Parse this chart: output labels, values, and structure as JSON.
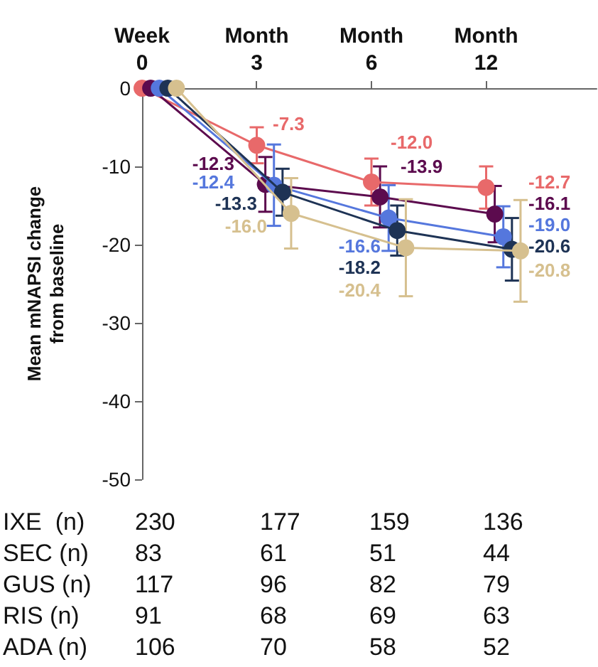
{
  "chart_data": {
    "type": "line",
    "categories": [
      "Week\n0",
      "Month\n3",
      "Month\n6",
      "Month\n12"
    ],
    "ylabel": "Mean mNAPSI change\nfrom baseline",
    "ylim": [
      -50,
      0
    ],
    "yticks": [
      -50,
      -40,
      -30,
      -20,
      -10,
      0
    ],
    "marker": "circle",
    "grid": false,
    "series": [
      {
        "color": "#e8696a",
        "values": [
          0,
          -7.3,
          -12.0,
          -12.7
        ],
        "errors": [
          null,
          2.3,
          3.0,
          2.7
        ],
        "value_labels": [
          null,
          "-7.3",
          "-12.0",
          "-12.7"
        ]
      },
      {
        "color": "#5c0b4e",
        "values": [
          0,
          -12.3,
          -13.9,
          -16.1
        ],
        "errors": [
          null,
          3.5,
          3.9,
          3.6
        ],
        "value_labels": [
          null,
          "-12.3",
          "-13.9",
          "-16.1"
        ]
      },
      {
        "color": "#5577dd",
        "values": [
          0,
          -12.4,
          -16.6,
          -19.0
        ],
        "errors": [
          null,
          5.2,
          4.2,
          3.9
        ],
        "value_labels": [
          null,
          "-12.4",
          "-16.6",
          "-19.0"
        ]
      },
      {
        "color": "#1e3355",
        "values": [
          0,
          -13.3,
          -18.2,
          -20.6
        ],
        "errors": [
          null,
          3.0,
          3.2,
          4.0
        ],
        "value_labels": [
          null,
          "-13.3",
          "-18.2",
          "-20.6"
        ]
      },
      {
        "color": "#d6c08f",
        "values": [
          0,
          -16.0,
          -20.4,
          -20.8
        ],
        "errors": [
          null,
          4.5,
          6.2,
          6.5
        ],
        "value_labels": [
          null,
          "-16.0",
          "-20.4",
          "-20.8"
        ]
      }
    ],
    "annotations": [
      "IXE  (n)",
      "230",
      "177",
      "159",
      "136",
      "SEC (n)",
      "83",
      "61",
      "51",
      "44",
      "GUS (n)",
      "117",
      "96",
      "82",
      "79",
      "RIS (n)",
      "91",
      "68",
      "69",
      "63",
      "ADA (n)",
      "106",
      "70",
      "58",
      "52"
    ]
  }
}
